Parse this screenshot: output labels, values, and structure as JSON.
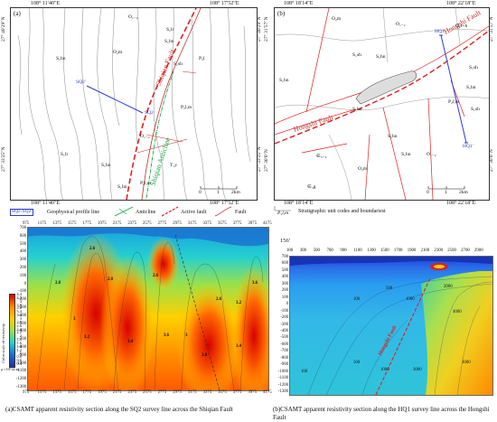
{
  "map_a": {
    "panel": "(a)",
    "top_left_coord": "108° 11′40″E",
    "top_right_coord": "108° 17′52″E",
    "bottom_left_coord": "108° 11′40″E",
    "bottom_right_coord": "108° 17′52″E",
    "left_top_lat": "27° 40′29″N",
    "left_bottom_lat": "27° 33′25″N",
    "right_top_lat": "27° 40′29″N",
    "right_bottom_lat": "27° 33′25″N",
    "fault_label": "Shiqian Fault",
    "anticline_label": "Shiqian Anticline",
    "profile_start": "SQ2'",
    "profile_end": "SQ2",
    "units": [
      "O₁₋₂",
      "S₁lr",
      "S₁hn",
      "O₂m",
      "S₁hn",
      "S₁sh",
      "P₂l",
      "P₂l,m",
      "O₁₋₂",
      "T₁y",
      "S₁hn",
      "P₂l,m",
      "S₁lr",
      "S₁hn"
    ],
    "scale_0": "0",
    "scale_1": "1",
    "scale_2": "2km"
  },
  "map_b": {
    "panel": "(b)",
    "top_left_coord": "108° 18′14″E",
    "top_right_coord": "108° 22′18″E",
    "bottom_left_coord": "108° 18′14″E",
    "bottom_right_coord": "108° 22′18″E",
    "left_top_lat": "27° 31′57″N",
    "left_bottom_lat": "27° 30′6″N",
    "right_top_lat": "27° 31′57″N",
    "right_bottom_lat": "27° 30′6″N",
    "fault_label_1": "Hongshi Fault",
    "fault_label_2": "Hongshi Fault",
    "profile_start": "HQ1",
    "profile_end": "HQ1'",
    "units": [
      "O₂m",
      "O₁₋₂",
      "O₁t+h",
      "S₁sh",
      "S₁hn",
      "S₁sh",
      "S₁hn",
      "S₁hn",
      "P₂l,m",
      "S₁sh",
      "S₁hn",
      "S₁hn",
      "∈₃₋₄",
      "O₂m",
      "∈₃g",
      "S₁hn",
      "O₁₋₂"
    ],
    "scale_0": "0",
    "scale_1": "1",
    "scale_2": "2km"
  },
  "legend": {
    "profile_code": "SQ2-SQ2'",
    "profile_text": "Geophysical profile line",
    "anticline_text": "Anticline",
    "active_fault_text": "Active fault",
    "fault_text": "Fault",
    "unit_code": "P₂l,m",
    "unit_text": "Stratigraphic unit codes and boundariest",
    "colors": {
      "profile": "#2b3bd6",
      "anticline": "#1aa34a",
      "active_fault": "#e02020",
      "fault": "#c0302a"
    }
  },
  "section_a": {
    "x_ticks": [
      "975",
      "1175",
      "1375",
      "1575",
      "1775",
      "1975",
      "2175",
      "2375",
      "2575",
      "2775",
      "2975",
      "3175",
      "3375",
      "3575",
      "3775",
      "3975",
      "4175"
    ],
    "y_ticks": [
      "700",
      "600",
      "500",
      "400",
      "300",
      "200",
      "100",
      "0",
      "-100",
      "-200",
      "-300",
      "-400",
      "-500",
      "-600",
      "-700",
      "-800",
      "-900",
      "-1000",
      "-1100",
      "-1200",
      "-1300"
    ],
    "colorbar_title": "Color scale of resistivity",
    "colorbar_unit": "ρ ×10³ Ω·m",
    "colorbar_labels": [
      "4.4",
      "4.2",
      "4",
      "3.8",
      "3.6",
      "3.4",
      "3.2",
      "3",
      "2.8",
      "2.6",
      "2.4",
      "2.2",
      "2",
      "1.8",
      "1.6",
      "1.4",
      "1.2",
      "1",
      "0.8",
      "0.6",
      "0.4"
    ],
    "contour_labels": [
      "2.6",
      "2.6",
      "2.8",
      "3",
      "3.2",
      "3.4",
      "3.6",
      "2.6",
      "3",
      "3.2",
      "3.4",
      "2.8",
      "3.8",
      "3.6"
    ],
    "caption": "(a)CSAMT apparent resistivity section along the SQ2 survey line across the Shiqian Fault"
  },
  "section_b": {
    "start_label": "156'",
    "x_ticks": [
      "100",
      "300",
      "500",
      "700",
      "900",
      "1100",
      "1300",
      "1500",
      "1700",
      "1900",
      "2100",
      "2300",
      "2500",
      "2700",
      "2900"
    ],
    "y_ticks": [
      "700",
      "600",
      "500",
      "400",
      "300",
      "200",
      "100",
      "0",
      "-100",
      "-200",
      "-300",
      "-400",
      "-500",
      "-600",
      "-700",
      "-800",
      "-900",
      "-1000",
      "-1100",
      "-1200",
      "-1300"
    ],
    "fault_label": "Hongshi Fault",
    "contour_labels": [
      "100",
      "500",
      "1000",
      "2000",
      "4000",
      "3000",
      "500",
      "1000",
      "3000",
      "100"
    ],
    "caption": "(b)CSAMT apparent resistivity section along the HQ1 survey line across the Hongshi Fault"
  }
}
